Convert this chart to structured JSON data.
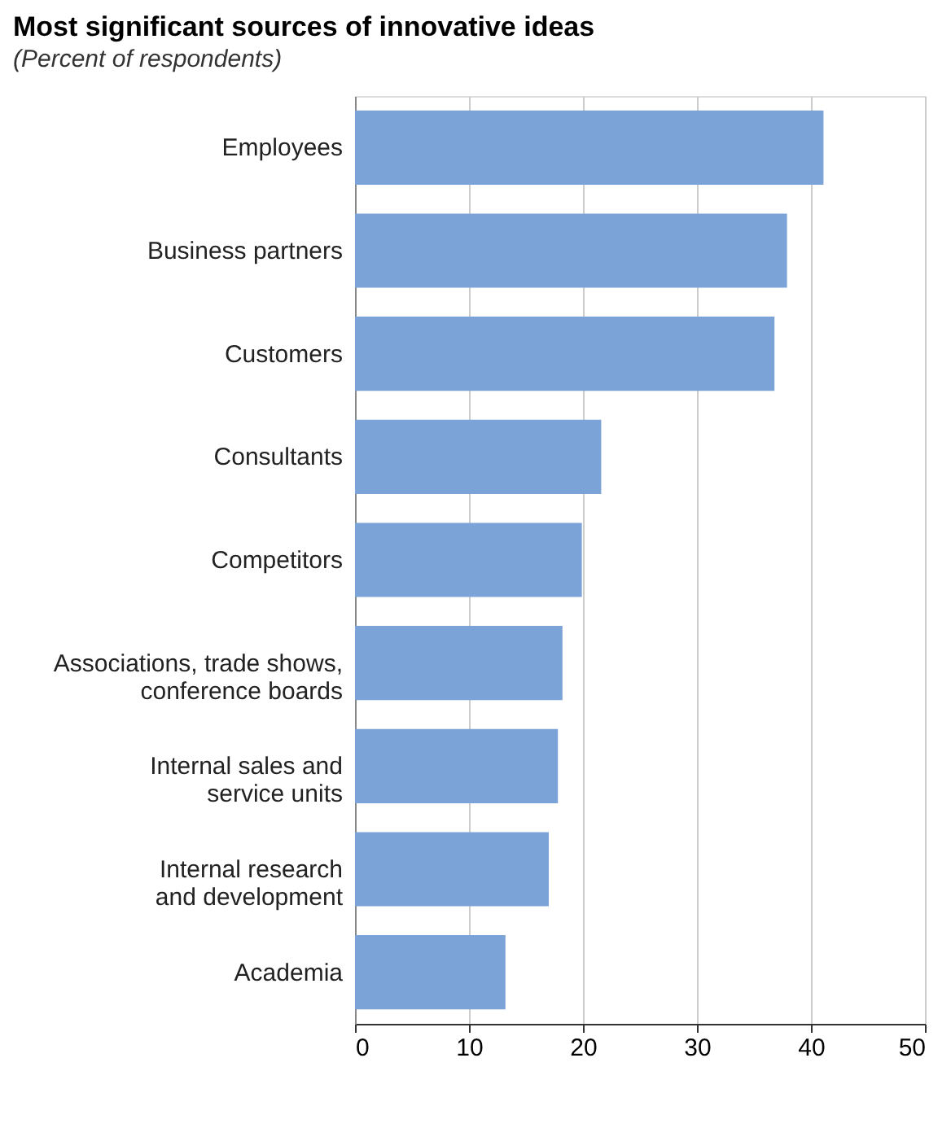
{
  "chart_data": {
    "type": "bar",
    "orientation": "horizontal",
    "title": "Most significant sources of innovative ideas",
    "subtitle": "(Percent of respondents)",
    "categories": [
      "Employees",
      "Business partners",
      "Customers",
      "Consultants",
      "Competitors",
      "Associations, trade shows,\nconference boards",
      "Internal sales and\nservice units",
      "Internal research\nand development",
      "Academia"
    ],
    "values": [
      41.1,
      37.9,
      36.8,
      21.6,
      19.9,
      18.2,
      17.8,
      17.0,
      13.2
    ],
    "color": "#7ba3d7",
    "xlim": [
      0,
      50
    ],
    "xticks": [
      0,
      10,
      20,
      30,
      40,
      50
    ],
    "grid": "x"
  }
}
